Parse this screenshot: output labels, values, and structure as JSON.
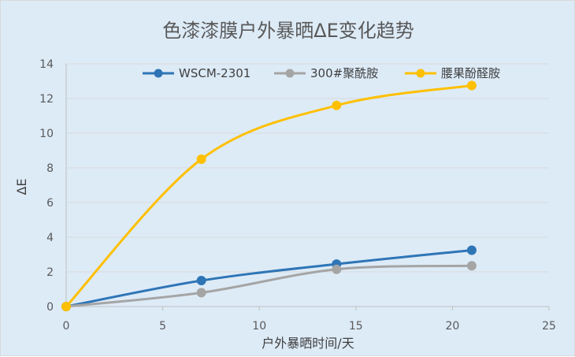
{
  "chart_data": {
    "type": "line",
    "title": "色漆漆膜户外暴晒ΔE变化趋势",
    "xlabel": "户外暴晒时间/天",
    "ylabel": "ΔE",
    "xlim": [
      0,
      25
    ],
    "ylim": [
      0,
      14
    ],
    "xticks": [
      0,
      5,
      10,
      15,
      20,
      25
    ],
    "yticks": [
      0,
      2,
      4,
      6,
      8,
      10,
      12,
      14
    ],
    "grid": "horizontal",
    "legend_position": "top",
    "series": [
      {
        "name": "WSCM-2301",
        "color": "#2e75b6",
        "x": [
          0,
          7,
          14,
          21
        ],
        "y": [
          0,
          1.5,
          2.45,
          3.25
        ]
      },
      {
        "name": "300#聚酰胺",
        "color": "#a5a5a5",
        "x": [
          0,
          7,
          14,
          21
        ],
        "y": [
          0,
          0.8,
          2.15,
          2.35
        ]
      },
      {
        "name": "腰果酚醛胺",
        "color": "#ffc000",
        "x": [
          0,
          7,
          14,
          21
        ],
        "y": [
          0,
          8.5,
          11.6,
          12.75
        ]
      }
    ]
  }
}
